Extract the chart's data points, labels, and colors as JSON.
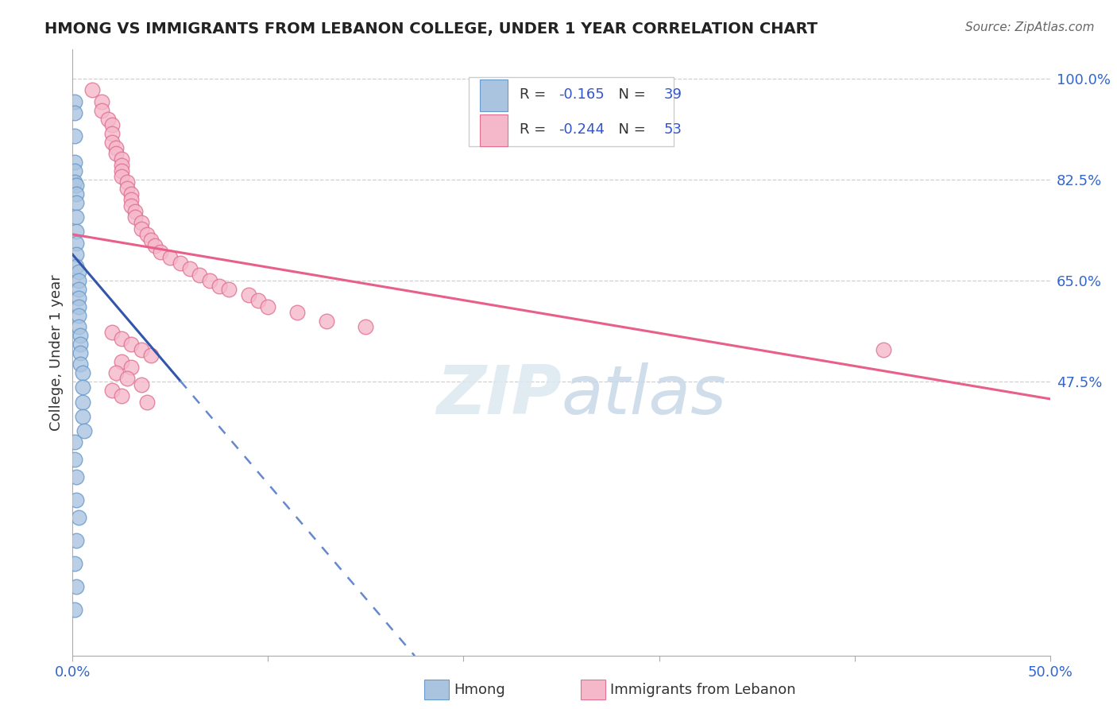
{
  "title": "HMONG VS IMMIGRANTS FROM LEBANON COLLEGE, UNDER 1 YEAR CORRELATION CHART",
  "source": "Source: ZipAtlas.com",
  "ylabel": "College, Under 1 year",
  "xlim": [
    0.0,
    0.5
  ],
  "ylim": [
    0.0,
    1.05
  ],
  "yticks_right": [
    1.0,
    0.825,
    0.65,
    0.475
  ],
  "ytick_labels_right": [
    "100.0%",
    "82.5%",
    "65.0%",
    "47.5%"
  ],
  "grid_color": "#d0d0d0",
  "background_color": "#ffffff",
  "hmong_color": "#aac4e0",
  "hmong_edge_color": "#6699cc",
  "lebanon_color": "#f5b8ca",
  "lebanon_edge_color": "#e07090",
  "hmong_R": "-0.165",
  "hmong_N": "39",
  "lebanon_R": "-0.244",
  "lebanon_N": "53",
  "blue_trend_x0": 0.0,
  "blue_trend_y0": 0.695,
  "blue_trend_x1": 0.175,
  "blue_trend_y1": 0.0,
  "pink_trend_x0": 0.0,
  "pink_trend_y0": 0.73,
  "pink_trend_x1": 0.5,
  "pink_trend_y1": 0.445,
  "hmong_x": [
    0.001,
    0.001,
    0.001,
    0.001,
    0.001,
    0.001,
    0.002,
    0.002,
    0.002,
    0.002,
    0.002,
    0.002,
    0.002,
    0.002,
    0.003,
    0.003,
    0.003,
    0.003,
    0.003,
    0.003,
    0.003,
    0.004,
    0.004,
    0.004,
    0.004,
    0.005,
    0.005,
    0.005,
    0.005,
    0.006,
    0.001,
    0.001,
    0.002,
    0.002,
    0.003,
    0.002,
    0.001,
    0.002,
    0.001
  ],
  "hmong_y": [
    0.96,
    0.94,
    0.9,
    0.855,
    0.84,
    0.82,
    0.815,
    0.8,
    0.785,
    0.76,
    0.735,
    0.715,
    0.695,
    0.675,
    0.665,
    0.65,
    0.635,
    0.62,
    0.605,
    0.59,
    0.57,
    0.555,
    0.54,
    0.525,
    0.505,
    0.49,
    0.465,
    0.44,
    0.415,
    0.39,
    0.37,
    0.34,
    0.31,
    0.27,
    0.24,
    0.2,
    0.16,
    0.12,
    0.08
  ],
  "leb_x": [
    0.01,
    0.015,
    0.015,
    0.018,
    0.02,
    0.02,
    0.02,
    0.022,
    0.022,
    0.025,
    0.025,
    0.025,
    0.025,
    0.028,
    0.028,
    0.03,
    0.03,
    0.03,
    0.032,
    0.032,
    0.035,
    0.035,
    0.038,
    0.04,
    0.042,
    0.045,
    0.05,
    0.055,
    0.06,
    0.065,
    0.07,
    0.075,
    0.08,
    0.09,
    0.095,
    0.1,
    0.115,
    0.13,
    0.15,
    0.02,
    0.025,
    0.03,
    0.035,
    0.04,
    0.025,
    0.03,
    0.022,
    0.028,
    0.035,
    0.02,
    0.025,
    0.415,
    0.038
  ],
  "leb_y": [
    0.98,
    0.96,
    0.945,
    0.93,
    0.92,
    0.905,
    0.89,
    0.88,
    0.87,
    0.86,
    0.85,
    0.84,
    0.83,
    0.82,
    0.81,
    0.8,
    0.79,
    0.78,
    0.77,
    0.76,
    0.75,
    0.74,
    0.73,
    0.72,
    0.71,
    0.7,
    0.69,
    0.68,
    0.67,
    0.66,
    0.65,
    0.64,
    0.635,
    0.625,
    0.615,
    0.605,
    0.595,
    0.58,
    0.57,
    0.56,
    0.55,
    0.54,
    0.53,
    0.52,
    0.51,
    0.5,
    0.49,
    0.48,
    0.47,
    0.46,
    0.45,
    0.53,
    0.44
  ]
}
